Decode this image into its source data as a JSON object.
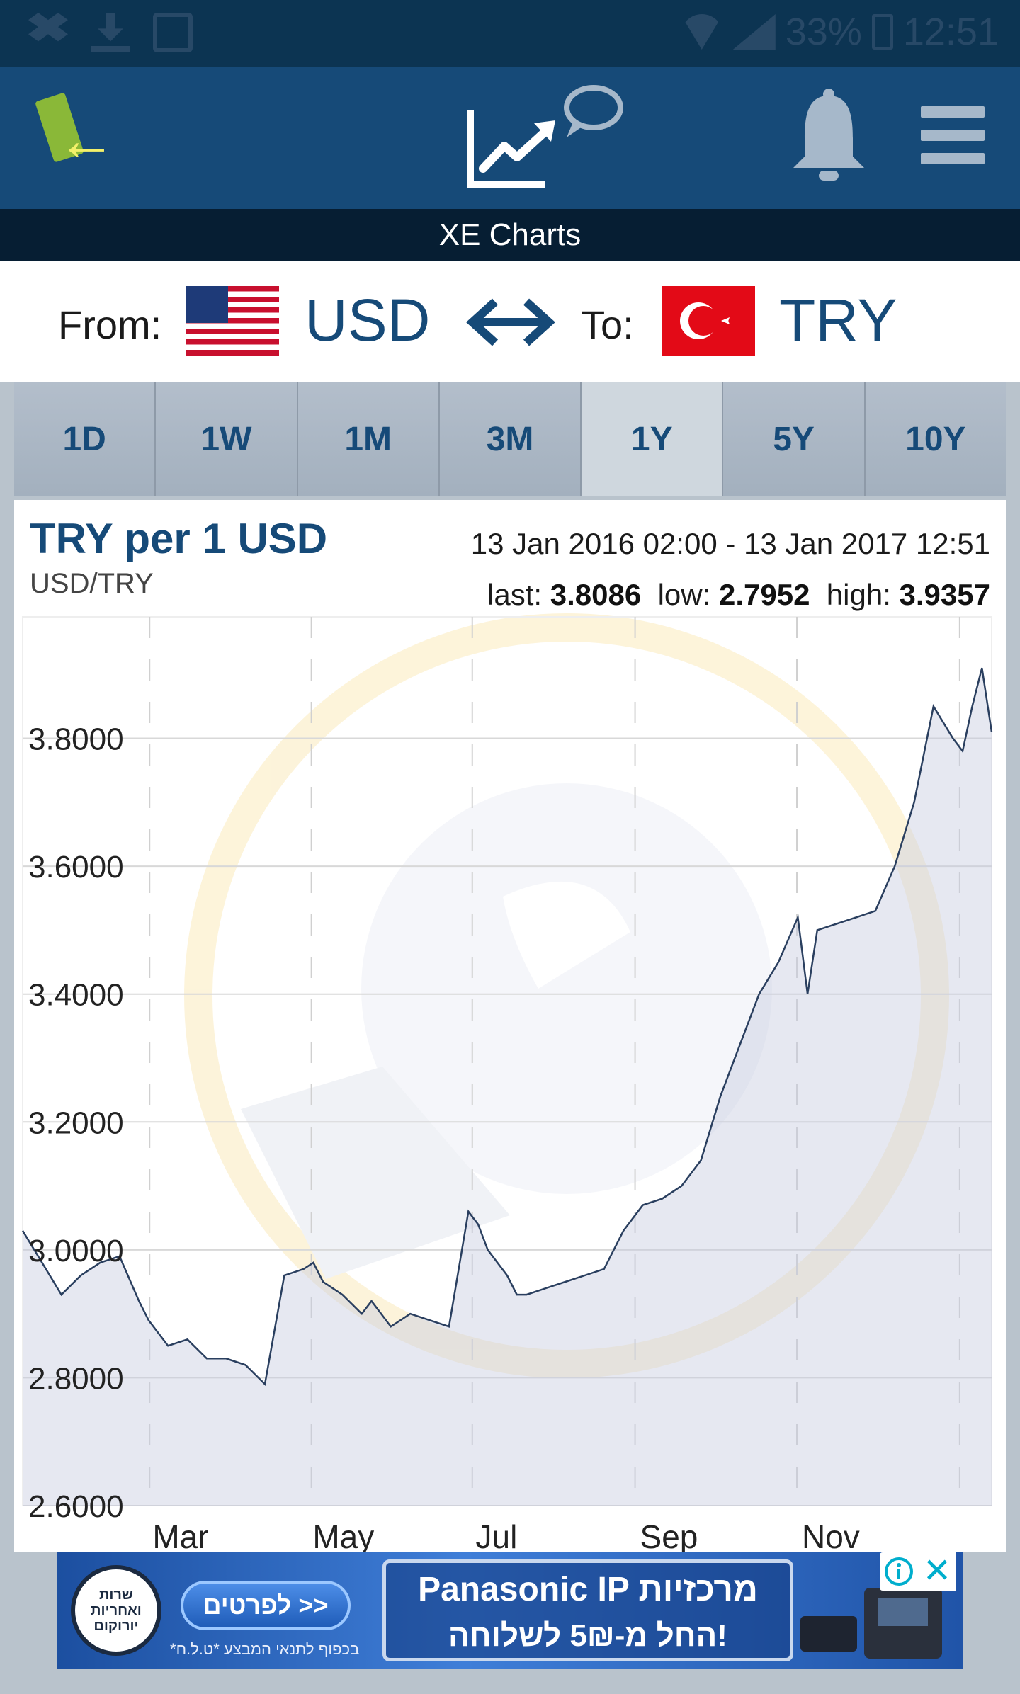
{
  "status_bar": {
    "battery": "33%",
    "time": "12:51"
  },
  "header": {
    "title": "XE Charts"
  },
  "currency": {
    "from_label": "From:",
    "from_code": "USD",
    "to_label": "To:",
    "to_code": "TRY"
  },
  "tabs": [
    {
      "label": "1D",
      "active": false
    },
    {
      "label": "1W",
      "active": false
    },
    {
      "label": "1M",
      "active": false
    },
    {
      "label": "3M",
      "active": false
    },
    {
      "label": "1Y",
      "active": true
    },
    {
      "label": "5Y",
      "active": false
    },
    {
      "label": "10Y",
      "active": false
    }
  ],
  "chart_header": {
    "title": "TRY per 1 USD",
    "pair": "USD/TRY",
    "range": "13 Jan 2016 02:00 - 13 Jan 2017 12:51",
    "last_label": "last:",
    "last_value": "3.8086",
    "low_label": "low:",
    "low_value": "2.7952",
    "high_label": "high:",
    "high_value": "3.9357"
  },
  "chart_data": {
    "type": "area",
    "title": "TRY per 1 USD",
    "subtitle": "USD/TRY",
    "xlabel": "",
    "ylabel": "",
    "x_tick_labels": [
      "Mar",
      "May",
      "Jul",
      "Sep",
      "Nov"
    ],
    "y_tick_labels": [
      "3.8000",
      "3.6000",
      "3.4000",
      "3.2000",
      "3.0000",
      "2.8000",
      "2.6000"
    ],
    "ylim": [
      2.6,
      3.99
    ],
    "grid": true,
    "x": [
      0.0,
      0.02,
      0.04,
      0.06,
      0.08,
      0.1,
      0.12,
      0.13,
      0.15,
      0.17,
      0.19,
      0.21,
      0.23,
      0.25,
      0.27,
      0.29,
      0.3,
      0.31,
      0.33,
      0.35,
      0.36,
      0.38,
      0.4,
      0.42,
      0.44,
      0.46,
      0.47,
      0.48,
      0.5,
      0.51,
      0.52,
      0.54,
      0.56,
      0.58,
      0.6,
      0.62,
      0.64,
      0.66,
      0.68,
      0.7,
      0.72,
      0.74,
      0.76,
      0.78,
      0.8,
      0.81,
      0.82,
      0.84,
      0.86,
      0.88,
      0.9,
      0.92,
      0.94,
      0.96,
      0.97,
      0.98,
      0.99,
      1.0
    ],
    "values": [
      3.03,
      2.98,
      2.93,
      2.96,
      2.98,
      2.99,
      2.92,
      2.89,
      2.85,
      2.86,
      2.83,
      2.83,
      2.82,
      2.79,
      2.96,
      2.97,
      2.98,
      2.95,
      2.93,
      2.9,
      2.92,
      2.88,
      2.9,
      2.89,
      2.88,
      3.06,
      3.04,
      3.0,
      2.96,
      2.93,
      2.93,
      2.94,
      2.95,
      2.96,
      2.97,
      3.03,
      3.07,
      3.08,
      3.1,
      3.14,
      3.24,
      3.32,
      3.4,
      3.45,
      3.52,
      3.4,
      3.5,
      3.51,
      3.52,
      3.53,
      3.6,
      3.7,
      3.85,
      3.8,
      3.78,
      3.85,
      3.91,
      3.81
    ],
    "series": [
      {
        "values_ref": "values",
        "color": "#2a3f5f"
      }
    ]
  },
  "ad": {
    "seal_text": "שרות ואחריות יורוקום",
    "button": "לפרטים >>",
    "fine_print": "*בכפוף לתנאי המבצע  *ט.ל.ח",
    "headline": "Panasonic IP מרכזיות",
    "subline": "החל מ-5₪ לשלוחה!",
    "close": "✕"
  },
  "colors": {
    "brand_blue": "#164a78",
    "status_bar": "#0c3452",
    "title_bar": "#061e33",
    "chart_line": "#2a3f5f"
  }
}
